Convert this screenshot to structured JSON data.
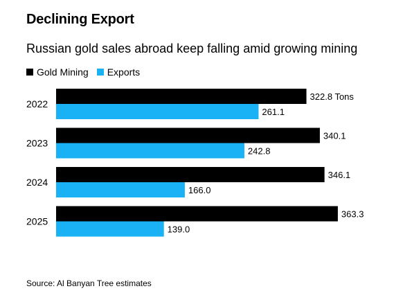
{
  "chart_data": {
    "type": "bar",
    "orientation": "horizontal",
    "title": "Declining Export",
    "subtitle": "Russian gold sales abroad keep falling amid growing mining",
    "categories": [
      "2022",
      "2023",
      "2024",
      "2025"
    ],
    "series": [
      {
        "name": "Gold Mining",
        "color": "#000000",
        "values": [
          322.8,
          340.1,
          346.1,
          363.3
        ],
        "labels": [
          "322.8 Tons",
          "340.1",
          "346.1",
          "363.3"
        ]
      },
      {
        "name": "Exports",
        "color": "#1ab2f5",
        "values": [
          261.1,
          242.8,
          166.0,
          139.0
        ],
        "labels": [
          "261.1",
          "242.8",
          "166.0",
          "139.0"
        ]
      }
    ],
    "legend_position": "top-left",
    "grid": false,
    "xlim": [
      0,
      380
    ]
  },
  "source": "Source: Al Banyan Tree estimates"
}
